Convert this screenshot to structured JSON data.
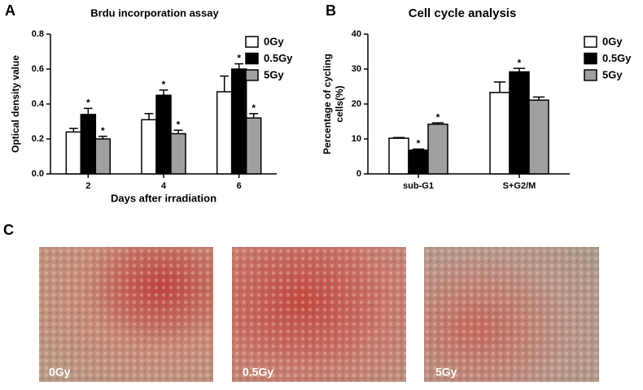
{
  "panel_labels": [
    "A",
    "B",
    "C"
  ],
  "chart_data": [
    {
      "type": "bar",
      "title": "Brdu incorporation assay",
      "xlabel": "Days after irradiation",
      "ylabel_lines": [
        "Optical density value"
      ],
      "categories": [
        "2",
        "4",
        "6"
      ],
      "series": [
        {
          "name": "0Gy",
          "color": "#ffffff",
          "values": [
            0.24,
            0.31,
            0.47
          ],
          "errors": [
            0.02,
            0.035,
            0.09
          ]
        },
        {
          "name": "0.5Gy",
          "color": "#000000",
          "values": [
            0.34,
            0.45,
            0.6
          ],
          "errors": [
            0.035,
            0.03,
            0.03
          ],
          "annotations": [
            "*",
            "*",
            "*"
          ]
        },
        {
          "name": "5Gy",
          "color": "#a0a0a0",
          "values": [
            0.2,
            0.23,
            0.32
          ],
          "errors": [
            0.015,
            0.02,
            0.025
          ],
          "annotations": [
            "*",
            "*",
            "*"
          ]
        }
      ],
      "ylim": [
        0,
        0.8
      ],
      "yticks": [
        {
          "value": 0,
          "label": "0.0"
        },
        0.2,
        0.4,
        0.6,
        0.8
      ],
      "legend": "top-right"
    },
    {
      "type": "bar",
      "title": "Cell cycle analysis",
      "ylabel_lines": [
        "Percentage of cycling",
        "cells(%)"
      ],
      "categories": [
        "sub-G1",
        "S+G2/M"
      ],
      "series": [
        {
          "name": "0Gy",
          "color": "#ffffff",
          "values": [
            10.2,
            23.3
          ],
          "errors": [
            0.2,
            3
          ]
        },
        {
          "name": "0.5Gy",
          "color": "#000000",
          "values": [
            6.8,
            29.2
          ],
          "errors": [
            0.3,
            1
          ],
          "annotations": [
            "*",
            "*"
          ]
        },
        {
          "name": "5Gy",
          "color": "#a0a0a0",
          "values": [
            14.2,
            21.1
          ],
          "errors": [
            0.4,
            0.9
          ],
          "annotations": [
            "*",
            null
          ]
        }
      ],
      "ylim": [
        0,
        40
      ],
      "yticks": [
        0,
        10,
        20,
        30,
        40
      ],
      "legend": "top-right"
    }
  ],
  "images": [
    {
      "label": "0Gy"
    },
    {
      "label": "0.5Gy"
    },
    {
      "label": "5Gy"
    }
  ]
}
